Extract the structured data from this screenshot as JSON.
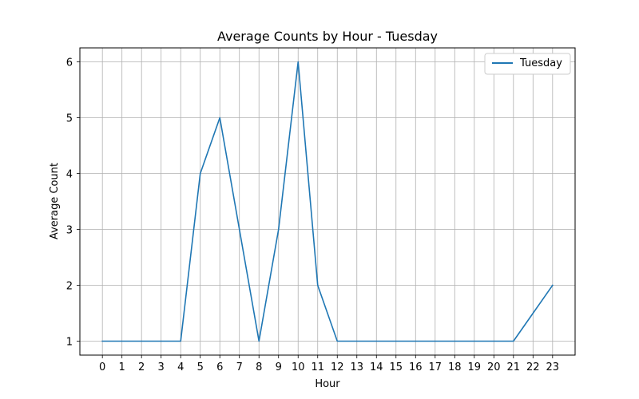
{
  "chart_data": {
    "type": "line",
    "title": "Average Counts by Hour - Tuesday",
    "xlabel": "Hour",
    "ylabel": "Average Count",
    "x": [
      0,
      1,
      2,
      3,
      4,
      5,
      6,
      7,
      8,
      9,
      10,
      11,
      12,
      13,
      14,
      15,
      16,
      17,
      18,
      19,
      20,
      21,
      22,
      23
    ],
    "x_tick_labels": [
      "0",
      "1",
      "2",
      "3",
      "4",
      "5",
      "6",
      "7",
      "8",
      "9",
      "10",
      "11",
      "12",
      "13",
      "14",
      "15",
      "16",
      "17",
      "18",
      "19",
      "20",
      "21",
      "22",
      "23"
    ],
    "y_ticks": [
      1,
      2,
      3,
      4,
      5,
      6
    ],
    "y_tick_labels": [
      "1",
      "2",
      "3",
      "4",
      "5",
      "6"
    ],
    "xlim": [
      -1.15,
      24.15
    ],
    "ylim": [
      0.75,
      6.25
    ],
    "grid": true,
    "legend_position": "top-right",
    "series": [
      {
        "name": "Tuesday",
        "color": "#1f77b4",
        "values": [
          1,
          1,
          1,
          1,
          1,
          4,
          5,
          3,
          1,
          3,
          6,
          2,
          1,
          1,
          1,
          1,
          1,
          1,
          1,
          1,
          1,
          1,
          1.5,
          2
        ]
      }
    ]
  }
}
